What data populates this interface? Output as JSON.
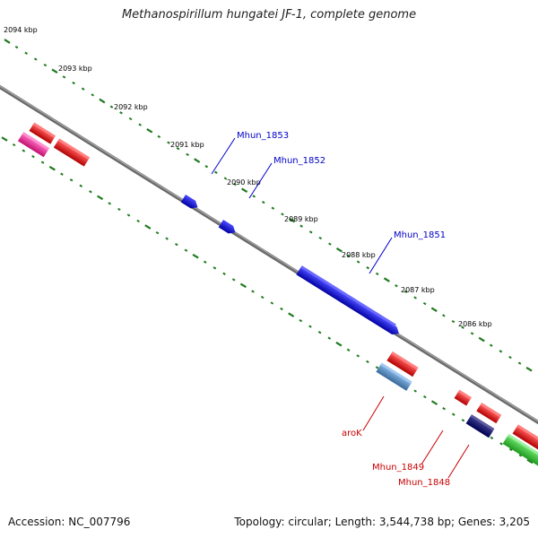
{
  "title": "Methanospirillum hungatei JF-1, complete genome",
  "accession": "Accession: NC_007796",
  "summary": "Topology: circular; Length: 3,544,738 bp; Genes: 3,205",
  "colors": {
    "backbone": "#7a7a7a",
    "tick": "#1f7a1f",
    "forward_gene": "#1010e6",
    "reverse_gene": "#e60000",
    "forward_label": "#0000c8",
    "reverse_label": "#c80000"
  },
  "kbp_ticks": [
    "2094 kbp",
    "2093 kbp",
    "2092 kbp",
    "2091 kbp",
    "2090 kbp",
    "2089 kbp",
    "2088 kbp",
    "2087 kbp",
    "2086 kbp"
  ],
  "gene_labels": {
    "mhun_1853": "Mhun_1853",
    "mhun_1852": "Mhun_1852",
    "mhun_1851": "Mhun_1851",
    "arok": "aroK",
    "mhun_1849": "Mhun_1849",
    "mhun_1848": "Mhun_1848"
  }
}
